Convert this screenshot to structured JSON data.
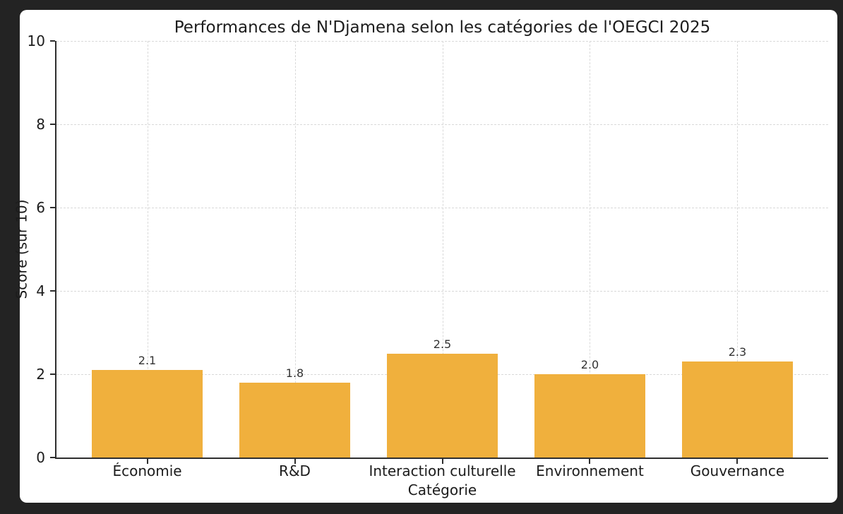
{
  "window": {
    "background": "#232323",
    "panel_background": "#ffffff"
  },
  "chart_data": {
    "type": "bar",
    "title": "Performances de N'Djamena selon les catégories de l'OEGCI 2025",
    "xlabel": "Catégorie",
    "ylabel": "Score (sur 10)",
    "categories": [
      "Économie",
      "R&D",
      "Interaction culturelle",
      "Environnement",
      "Gouvernance"
    ],
    "values": [
      2.1,
      1.8,
      2.5,
      2.0,
      2.3
    ],
    "bar_value_labels": [
      "2.1",
      "1.8",
      "2.5",
      "2.0",
      "2.3"
    ],
    "ylim": [
      0,
      10
    ],
    "yticks": [
      0,
      2,
      4,
      6,
      8,
      10
    ],
    "bar_color": "#F0B03D",
    "grid": {
      "style": "dashed",
      "color": "#d9d9d9",
      "horizontal": true,
      "vertical": true
    },
    "axis_color": "#2e2e2e",
    "text_color": "#1c1c1c",
    "legend": "none"
  }
}
